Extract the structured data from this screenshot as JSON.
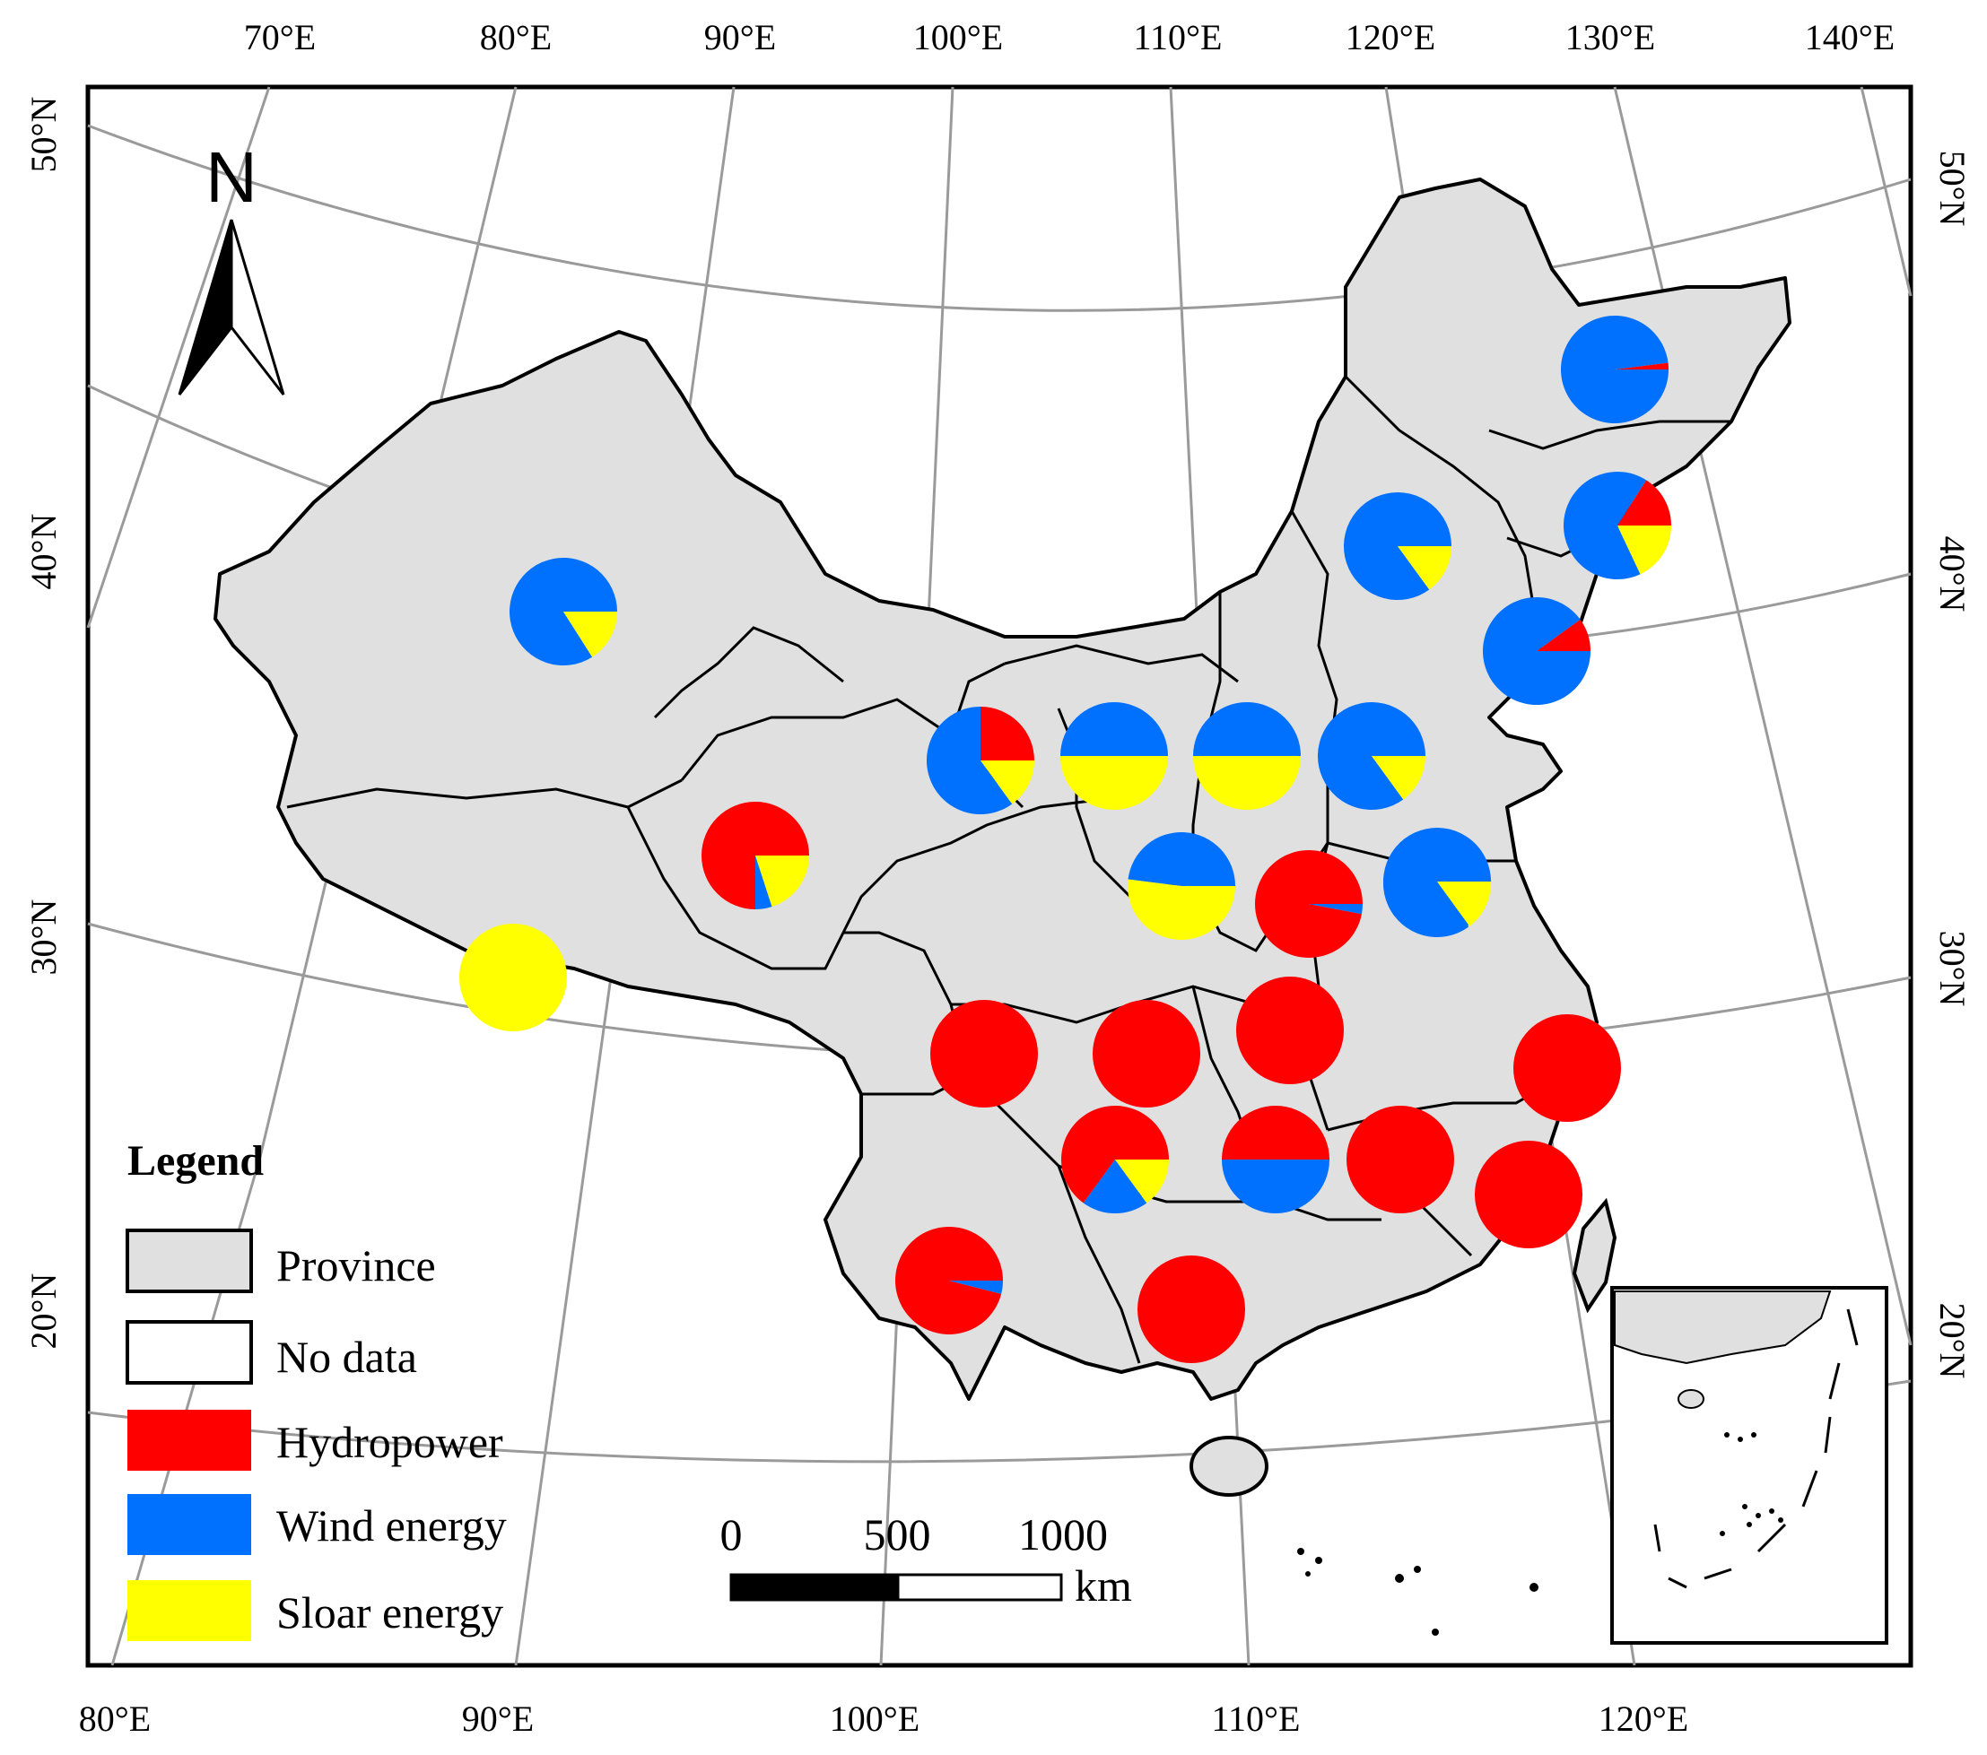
{
  "map": {
    "top_lon_labels": [
      "70°E",
      "80°E",
      "90°E",
      "100°E",
      "110°E",
      "120°E",
      "130°E",
      "140°E"
    ],
    "bottom_lon_labels": [
      "80°E",
      "90°E",
      "100°E",
      "110°E",
      "120°E"
    ],
    "left_lat_labels": [
      "50°N",
      "40°N",
      "30°N",
      "20°N"
    ],
    "right_lat_labels": [
      "50°N",
      "40°N",
      "30°N",
      "20°N"
    ],
    "north_label": "N"
  },
  "legend": {
    "title": "Legend",
    "items": [
      {
        "label": "Province",
        "color": "#e0e0e0"
      },
      {
        "label": "No data",
        "color": "#ffffff"
      },
      {
        "label": "Hydropower",
        "color": "#ff0000"
      },
      {
        "label": "Wind energy",
        "color": "#0070ff"
      },
      {
        "label": "Sloar energy",
        "color": "#ffff00"
      }
    ]
  },
  "scale_bar": {
    "ticks": [
      "0",
      "500",
      "1000"
    ],
    "unit": "km"
  },
  "colors": {
    "hydropower": "#ff0000",
    "wind": "#0070ff",
    "solar": "#ffff00",
    "province": "#e0e0e0"
  },
  "pie_shares": [
    {
      "hydropower": 0.02,
      "wind": 0.98,
      "solar": 0.0
    },
    {
      "hydropower": 0.16,
      "wind": 0.66,
      "solar": 0.18
    },
    {
      "hydropower": 0.0,
      "wind": 0.85,
      "solar": 0.15
    },
    {
      "hydropower": 0.1,
      "wind": 0.9,
      "solar": 0.0
    },
    {
      "hydropower": 0.0,
      "wind": 0.84,
      "solar": 0.16
    },
    {
      "hydropower": 0.0,
      "wind": 0.85,
      "solar": 0.15
    },
    {
      "hydropower": 0.25,
      "wind": 0.6,
      "solar": 0.15
    },
    {
      "hydropower": 0.0,
      "wind": 0.5,
      "solar": 0.5
    },
    {
      "hydropower": 0.0,
      "wind": 0.5,
      "solar": 0.5
    },
    {
      "hydropower": 0.0,
      "wind": 0.85,
      "solar": 0.15
    },
    {
      "hydropower": 0.75,
      "wind": 0.05,
      "solar": 0.2
    },
    {
      "hydropower": 0.0,
      "wind": 0.0,
      "solar": 1.0
    },
    {
      "hydropower": 0.0,
      "wind": 0.48,
      "solar": 0.52
    },
    {
      "hydropower": 0.97,
      "wind": 0.03,
      "solar": 0.0
    },
    {
      "hydropower": 0.0,
      "wind": 0.85,
      "solar": 0.15
    },
    {
      "hydropower": 1.0,
      "wind": 0.0,
      "solar": 0.0
    },
    {
      "hydropower": 1.0,
      "wind": 0.0,
      "solar": 0.0
    },
    {
      "hydropower": 1.0,
      "wind": 0.0,
      "solar": 0.0
    },
    {
      "hydropower": 1.0,
      "wind": 0.0,
      "solar": 0.0
    },
    {
      "hydropower": 0.65,
      "wind": 0.2,
      "solar": 0.15
    },
    {
      "hydropower": 0.5,
      "wind": 0.5,
      "solar": 0.0
    },
    {
      "hydropower": 1.0,
      "wind": 0.0,
      "solar": 0.0
    },
    {
      "hydropower": 1.0,
      "wind": 0.0,
      "solar": 0.0
    },
    {
      "hydropower": 0.96,
      "wind": 0.04,
      "solar": 0.0
    },
    {
      "hydropower": 1.0,
      "wind": 0.0,
      "solar": 0.0
    }
  ]
}
